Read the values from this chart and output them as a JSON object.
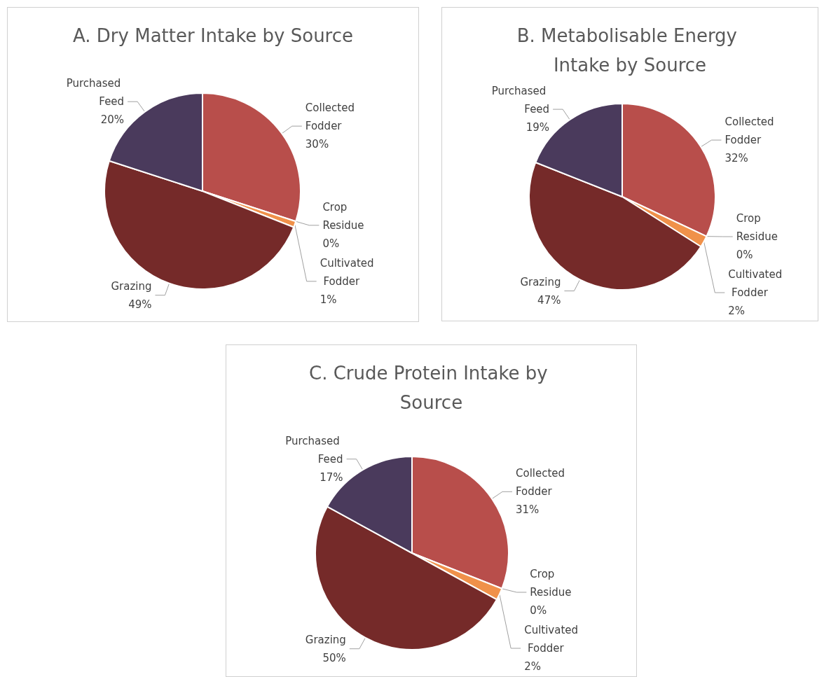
{
  "chart_data": [
    {
      "type": "pie",
      "title": "A. Dry Matter Intake by Source",
      "categories": [
        "Collected Fodder",
        "Crop Residue",
        "Cultivated Fodder",
        "Grazing",
        "Purchased Feed"
      ],
      "values": [
        30,
        0,
        1,
        49,
        20
      ],
      "value_labels": [
        "30%",
        "0%",
        "1%",
        "49%",
        "20%"
      ],
      "colors": [
        "#b84e4b",
        "#a5a5a5",
        "#f0914a",
        "#752a29",
        "#4a3a5c"
      ]
    },
    {
      "type": "pie",
      "title": "B. Metabolisable Energy Intake by Source",
      "categories": [
        "Collected Fodder",
        "Crop Residue",
        "Cultivated Fodder",
        "Grazing",
        "Purchased Feed"
      ],
      "values": [
        32,
        0,
        2,
        47,
        19
      ],
      "value_labels": [
        "32%",
        "0%",
        "2%",
        "47%",
        "19%"
      ],
      "colors": [
        "#b84e4b",
        "#a5a5a5",
        "#f0914a",
        "#752a29",
        "#4a3a5c"
      ]
    },
    {
      "type": "pie",
      "title": "C. Crude Protein Intake by Source",
      "categories": [
        "Collected Fodder",
        "Crop Residue",
        "Cultivated Fodder",
        "Grazing",
        "Purchased Feed"
      ],
      "values": [
        31,
        0,
        2,
        50,
        17
      ],
      "value_labels": [
        "31%",
        "0%",
        "2%",
        "50%",
        "17%"
      ],
      "colors": [
        "#b84e4b",
        "#a5a5a5",
        "#f0914a",
        "#752a29",
        "#4a3a5c"
      ]
    }
  ]
}
